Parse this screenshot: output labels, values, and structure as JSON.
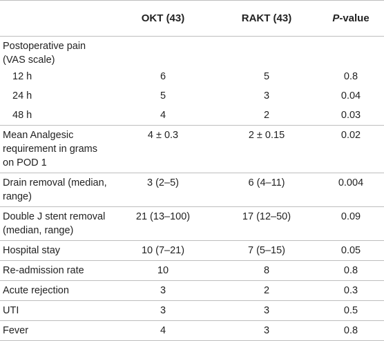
{
  "table": {
    "headers": {
      "col0": "",
      "col1": "OKT (43)",
      "col2": "RAKT (43)",
      "col3_italic": "P",
      "col3_rest": "-value"
    },
    "pain_header": "Postoperative pain (VAS scale)",
    "pain_rows": [
      {
        "label": "12 h",
        "okt": "6",
        "rakt": "5",
        "p": "0.8"
      },
      {
        "label": "24 h",
        "okt": "5",
        "rakt": "3",
        "p": "0.04"
      },
      {
        "label": "48 h",
        "okt": "4",
        "rakt": "2",
        "p": "0.03"
      }
    ],
    "rows": [
      {
        "label": "Mean Analgesic requirement in grams on POD 1",
        "okt": "4 ± 0.3",
        "rakt": "2 ± 0.15",
        "p": "0.02"
      },
      {
        "label": "Drain removal (median, range)",
        "okt": "3 (2–5)",
        "rakt": "6 (4–11)",
        "p": "0.004"
      },
      {
        "label": "Double J stent removal (median, range)",
        "okt": "21 (13–100)",
        "rakt": "17 (12–50)",
        "p": "0.09"
      },
      {
        "label": "Hospital stay",
        "okt": "10 (7–21)",
        "rakt": "7 (5–15)",
        "p": "0.05"
      },
      {
        "label": "Re-admission rate",
        "okt": "10",
        "rakt": "8",
        "p": "0.8"
      },
      {
        "label": "Acute rejection",
        "okt": "3",
        "rakt": "2",
        "p": "0.3"
      },
      {
        "label": "UTI",
        "okt": "3",
        "rakt": "3",
        "p": "0.5"
      },
      {
        "label": "Fever",
        "okt": "4",
        "rakt": "3",
        "p": "0.8"
      }
    ]
  }
}
